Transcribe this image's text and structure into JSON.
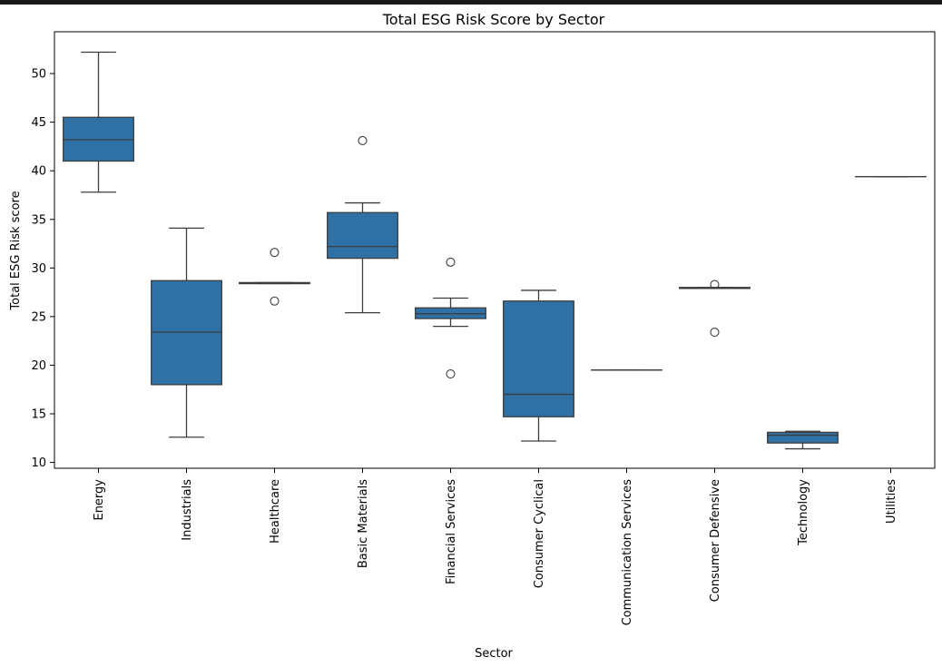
{
  "chart_data": {
    "type": "box",
    "title": "Total ESG Risk Score by Sector",
    "xlabel": "Sector",
    "ylabel": "Total ESG Risk score",
    "ylim": [
      9.4,
      54.3
    ],
    "yticks": [
      10,
      15,
      20,
      25,
      30,
      35,
      40,
      45,
      50
    ],
    "grid": false,
    "box_color": "#2f71a5",
    "line_color": "#3d3d3d",
    "categories": [
      "Energy",
      "Industrials",
      "Healthcare",
      "Basic Materials",
      "Financial Services",
      "Consumer Cyclical",
      "Communication Services",
      "Consumer Defensive",
      "Technology",
      "Utilities"
    ],
    "boxes": [
      {
        "sector": "Energy",
        "whisker_low": 37.8,
        "q1": 41.0,
        "median": 43.2,
        "q3": 45.5,
        "whisker_high": 52.2,
        "outliers": []
      },
      {
        "sector": "Industrials",
        "whisker_low": 12.6,
        "q1": 18.0,
        "median": 23.4,
        "q3": 28.7,
        "whisker_high": 34.1,
        "outliers": []
      },
      {
        "sector": "Healthcare",
        "whisker_low": 28.4,
        "q1": 28.4,
        "median": 28.4,
        "q3": 28.5,
        "whisker_high": 28.5,
        "outliers": [
          31.6,
          26.6
        ]
      },
      {
        "sector": "Basic Materials",
        "whisker_low": 25.4,
        "q1": 31.0,
        "median": 32.2,
        "q3": 35.7,
        "whisker_high": 36.7,
        "outliers": [
          43.1
        ]
      },
      {
        "sector": "Financial Services",
        "whisker_low": 24.0,
        "q1": 24.8,
        "median": 25.3,
        "q3": 25.9,
        "whisker_high": 26.9,
        "outliers": [
          30.6,
          19.1
        ]
      },
      {
        "sector": "Consumer Cyclical",
        "whisker_low": 12.2,
        "q1": 14.7,
        "median": 17.0,
        "q3": 26.6,
        "whisker_high": 27.7,
        "outliers": []
      },
      {
        "sector": "Communication Services",
        "whisker_low": 19.5,
        "q1": 19.5,
        "median": 19.5,
        "q3": 19.5,
        "whisker_high": 19.5,
        "outliers": []
      },
      {
        "sector": "Consumer Defensive",
        "whisker_low": 27.9,
        "q1": 27.9,
        "median": 27.9,
        "q3": 28.0,
        "whisker_high": 28.0,
        "outliers": [
          28.3,
          23.4
        ]
      },
      {
        "sector": "Technology",
        "whisker_low": 11.4,
        "q1": 12.0,
        "median": 12.8,
        "q3": 13.1,
        "whisker_high": 13.2,
        "outliers": []
      },
      {
        "sector": "Utilities",
        "whisker_low": 39.4,
        "q1": 39.4,
        "median": 39.4,
        "q3": 39.4,
        "whisker_high": 39.4,
        "outliers": []
      }
    ]
  }
}
